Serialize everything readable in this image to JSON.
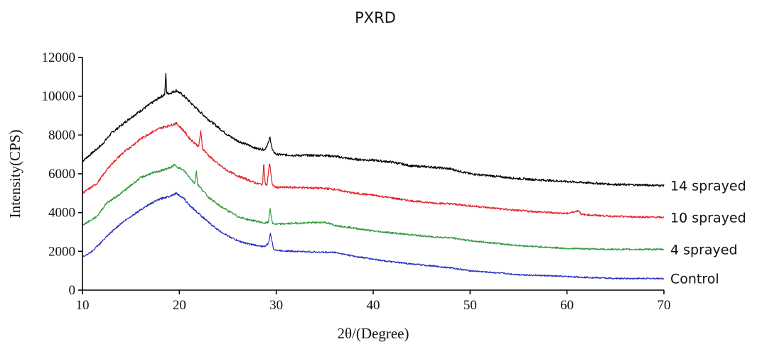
{
  "chart_data": {
    "type": "line",
    "title": "PXRD",
    "xlabel": "2θ/(Degree)",
    "ylabel": "Intensity(CPS)",
    "xlim": [
      10,
      70
    ],
    "ylim": [
      0,
      12000
    ],
    "x_ticks": [
      10,
      20,
      30,
      40,
      50,
      60,
      70
    ],
    "y_ticks": [
      0,
      2000,
      4000,
      6000,
      8000,
      10000,
      12000
    ],
    "grid": false,
    "legend": "series labels at right end of each line",
    "series": [
      {
        "name": "14 sprayed",
        "color": "#000000",
        "x": [
          10,
          12,
          13,
          14,
          15,
          16,
          17,
          18,
          18.5,
          18.6,
          18.7,
          19,
          19.7,
          20.5,
          21,
          22,
          23,
          24,
          25,
          26,
          27,
          28,
          28.8,
          29.2,
          29.35,
          29.6,
          30,
          32,
          35,
          36,
          38,
          40,
          42,
          44,
          46,
          48,
          50,
          55,
          60,
          65,
          70
        ],
        "y": [
          6650,
          7500,
          8100,
          8500,
          8900,
          9250,
          9600,
          9950,
          10100,
          11200,
          10150,
          10150,
          10300,
          10000,
          9750,
          9250,
          8800,
          8400,
          8000,
          7700,
          7500,
          7300,
          7250,
          7600,
          7900,
          7200,
          7000,
          6950,
          6950,
          6900,
          6750,
          6700,
          6600,
          6400,
          6350,
          6250,
          6000,
          5750,
          5600,
          5450,
          5400
        ]
      },
      {
        "name": "10 sprayed",
        "color": "#e3242b",
        "x": [
          10,
          11.5,
          12.5,
          13,
          14,
          15,
          16,
          17,
          18,
          19,
          19.7,
          20.5,
          21,
          22,
          22.2,
          22.4,
          23,
          24,
          25,
          26,
          27,
          28,
          28.6,
          28.7,
          28.85,
          29.05,
          29.3,
          29.6,
          30,
          32,
          35,
          36,
          38,
          40,
          42,
          44,
          46,
          48,
          50,
          55,
          60,
          61.2,
          61.5,
          65,
          70
        ],
        "y": [
          5000,
          5500,
          6200,
          6500,
          7000,
          7400,
          7800,
          8100,
          8350,
          8500,
          8600,
          8200,
          7850,
          7400,
          8200,
          7300,
          6950,
          6500,
          6150,
          5900,
          5700,
          5500,
          5450,
          6700,
          5500,
          5400,
          6600,
          5400,
          5300,
          5300,
          5250,
          5200,
          5000,
          4900,
          4750,
          4600,
          4500,
          4450,
          4350,
          4100,
          3950,
          4100,
          3900,
          3800,
          3750
        ]
      },
      {
        "name": "4 sprayed",
        "color": "#2e9a3a",
        "x": [
          10,
          11.5,
          12.5,
          13,
          14,
          15,
          16,
          17,
          18,
          19,
          19.5,
          20.5,
          21,
          21.6,
          21.75,
          21.9,
          23,
          24,
          25,
          26,
          27,
          28,
          28.8,
          29.2,
          29.35,
          29.6,
          30,
          32,
          35,
          36,
          38,
          40,
          42,
          44,
          46,
          48,
          50,
          55,
          60,
          65,
          70
        ],
        "y": [
          3350,
          3800,
          4500,
          4650,
          5000,
          5400,
          5800,
          6000,
          6150,
          6300,
          6450,
          6150,
          5850,
          5500,
          6200,
          5450,
          4800,
          4400,
          4100,
          3800,
          3650,
          3550,
          3450,
          3500,
          4250,
          3450,
          3400,
          3450,
          3500,
          3350,
          3200,
          3050,
          2950,
          2850,
          2750,
          2700,
          2550,
          2300,
          2150,
          2100,
          2100
        ]
      },
      {
        "name": "Control",
        "color": "#2a2fbf",
        "x": [
          10,
          11,
          12,
          13,
          14,
          15,
          16,
          17,
          18,
          19,
          19.7,
          20.5,
          21,
          22,
          23,
          24,
          25,
          26,
          27,
          28,
          28.8,
          29.2,
          29.4,
          29.7,
          30,
          32,
          35,
          36,
          38,
          40,
          42,
          44,
          46,
          48,
          50,
          55,
          60,
          65,
          70
        ],
        "y": [
          1700,
          2000,
          2500,
          3000,
          3450,
          3800,
          4150,
          4450,
          4700,
          4850,
          5000,
          4700,
          4400,
          3950,
          3500,
          3100,
          2800,
          2550,
          2400,
          2300,
          2250,
          2400,
          2950,
          2150,
          2050,
          2000,
          1950,
          1950,
          1750,
          1600,
          1450,
          1350,
          1250,
          1150,
          1000,
          800,
          700,
          600,
          600
        ]
      }
    ]
  }
}
